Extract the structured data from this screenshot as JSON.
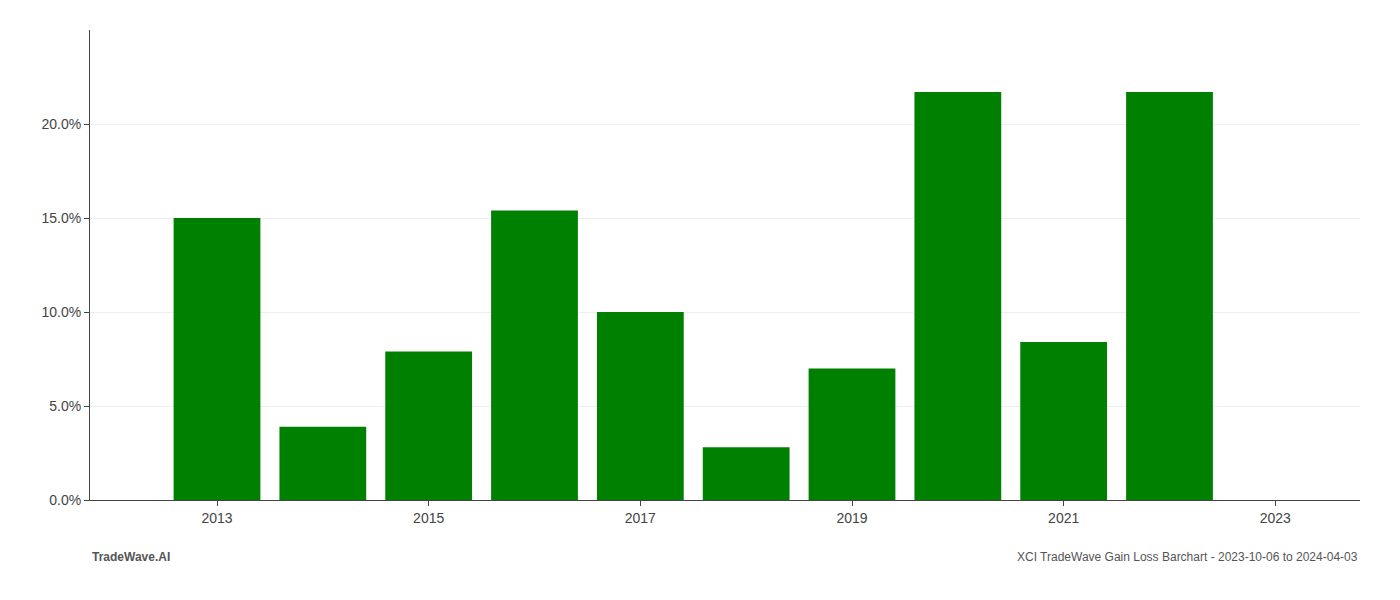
{
  "chart_data": {
    "type": "bar",
    "x": [
      2013,
      2014,
      2015,
      2016,
      2017,
      2018,
      2019,
      2020,
      2021,
      2022
    ],
    "values": [
      0.15,
      0.039,
      0.079,
      0.154,
      0.1,
      0.028,
      0.07,
      0.217,
      0.084,
      0.217
    ],
    "color": "#008000",
    "xlim": [
      2011.8,
      2023.8
    ],
    "xticks": [
      2013,
      2015,
      2017,
      2019,
      2021,
      2023
    ],
    "ylim": [
      0,
      0.25
    ],
    "yticks": [
      {
        "value": 0.0,
        "label": "0.0%"
      },
      {
        "value": 0.05,
        "label": "5.0%"
      },
      {
        "value": 0.1,
        "label": "10.0%"
      },
      {
        "value": 0.15,
        "label": "15.0%"
      },
      {
        "value": 0.2,
        "label": "20.0%"
      }
    ],
    "grid": true,
    "annotations": [
      "TradeWave.AI",
      "XCI TradeWave Gain Loss Barchart - 2023-10-06 to 2024-04-03"
    ]
  }
}
